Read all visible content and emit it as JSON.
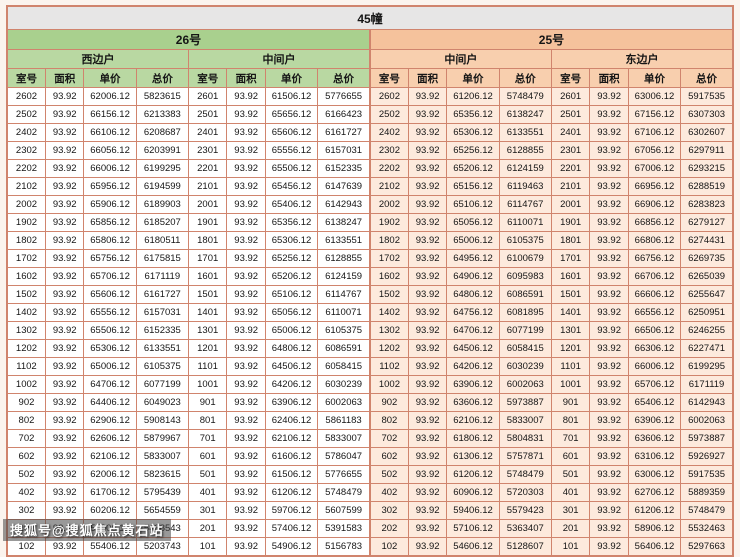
{
  "title": "45幢",
  "buildings": [
    {
      "label": "26号",
      "sections": [
        "西边户",
        "中间户"
      ]
    },
    {
      "label": "25号",
      "sections": [
        "中间户",
        "东边户"
      ]
    }
  ],
  "columns": [
    "室号",
    "面积",
    "单价",
    "总价"
  ],
  "rows": [
    [
      "2602",
      "93.92",
      "62006.12",
      "5823615",
      "2601",
      "93.92",
      "61506.12",
      "5776655",
      "2602",
      "93.92",
      "61206.12",
      "5748479",
      "2601",
      "93.92",
      "63006.12",
      "5917535"
    ],
    [
      "2502",
      "93.92",
      "66156.12",
      "6213383",
      "2501",
      "93.92",
      "65656.12",
      "6166423",
      "2502",
      "93.92",
      "65356.12",
      "6138247",
      "2501",
      "93.92",
      "67156.12",
      "6307303"
    ],
    [
      "2402",
      "93.92",
      "66106.12",
      "6208687",
      "2401",
      "93.92",
      "65606.12",
      "6161727",
      "2402",
      "93.92",
      "65306.12",
      "6133551",
      "2401",
      "93.92",
      "67106.12",
      "6302607"
    ],
    [
      "2302",
      "93.92",
      "66056.12",
      "6203991",
      "2301",
      "93.92",
      "65556.12",
      "6157031",
      "2302",
      "93.92",
      "65256.12",
      "6128855",
      "2301",
      "93.92",
      "67056.12",
      "6297911"
    ],
    [
      "2202",
      "93.92",
      "66006.12",
      "6199295",
      "2201",
      "93.92",
      "65506.12",
      "6152335",
      "2202",
      "93.92",
      "65206.12",
      "6124159",
      "2201",
      "93.92",
      "67006.12",
      "6293215"
    ],
    [
      "2102",
      "93.92",
      "65956.12",
      "6194599",
      "2101",
      "93.92",
      "65456.12",
      "6147639",
      "2102",
      "93.92",
      "65156.12",
      "6119463",
      "2101",
      "93.92",
      "66956.12",
      "6288519"
    ],
    [
      "2002",
      "93.92",
      "65906.12",
      "6189903",
      "2001",
      "93.92",
      "65406.12",
      "6142943",
      "2002",
      "93.92",
      "65106.12",
      "6114767",
      "2001",
      "93.92",
      "66906.12",
      "6283823"
    ],
    [
      "1902",
      "93.92",
      "65856.12",
      "6185207",
      "1901",
      "93.92",
      "65356.12",
      "6138247",
      "1902",
      "93.92",
      "65056.12",
      "6110071",
      "1901",
      "93.92",
      "66856.12",
      "6279127"
    ],
    [
      "1802",
      "93.92",
      "65806.12",
      "6180511",
      "1801",
      "93.92",
      "65306.12",
      "6133551",
      "1802",
      "93.92",
      "65006.12",
      "6105375",
      "1801",
      "93.92",
      "66806.12",
      "6274431"
    ],
    [
      "1702",
      "93.92",
      "65756.12",
      "6175815",
      "1701",
      "93.92",
      "65256.12",
      "6128855",
      "1702",
      "93.92",
      "64956.12",
      "6100679",
      "1701",
      "93.92",
      "66756.12",
      "6269735"
    ],
    [
      "1602",
      "93.92",
      "65706.12",
      "6171119",
      "1601",
      "93.92",
      "65206.12",
      "6124159",
      "1602",
      "93.92",
      "64906.12",
      "6095983",
      "1601",
      "93.92",
      "66706.12",
      "6265039"
    ],
    [
      "1502",
      "93.92",
      "65606.12",
      "6161727",
      "1501",
      "93.92",
      "65106.12",
      "6114767",
      "1502",
      "93.92",
      "64806.12",
      "6086591",
      "1501",
      "93.92",
      "66606.12",
      "6255647"
    ],
    [
      "1402",
      "93.92",
      "65556.12",
      "6157031",
      "1401",
      "93.92",
      "65056.12",
      "6110071",
      "1402",
      "93.92",
      "64756.12",
      "6081895",
      "1401",
      "93.92",
      "66556.12",
      "6250951"
    ],
    [
      "1302",
      "93.92",
      "65506.12",
      "6152335",
      "1301",
      "93.92",
      "65006.12",
      "6105375",
      "1302",
      "93.92",
      "64706.12",
      "6077199",
      "1301",
      "93.92",
      "66506.12",
      "6246255"
    ],
    [
      "1202",
      "93.92",
      "65306.12",
      "6133551",
      "1201",
      "93.92",
      "64806.12",
      "6086591",
      "1202",
      "93.92",
      "64506.12",
      "6058415",
      "1201",
      "93.92",
      "66306.12",
      "6227471"
    ],
    [
      "1102",
      "93.92",
      "65006.12",
      "6105375",
      "1101",
      "93.92",
      "64506.12",
      "6058415",
      "1102",
      "93.92",
      "64206.12",
      "6030239",
      "1101",
      "93.92",
      "66006.12",
      "6199295"
    ],
    [
      "1002",
      "93.92",
      "64706.12",
      "6077199",
      "1001",
      "93.92",
      "64206.12",
      "6030239",
      "1002",
      "93.92",
      "63906.12",
      "6002063",
      "1001",
      "93.92",
      "65706.12",
      "6171119"
    ],
    [
      "902",
      "93.92",
      "64406.12",
      "6049023",
      "901",
      "93.92",
      "63906.12",
      "6002063",
      "902",
      "93.92",
      "63606.12",
      "5973887",
      "901",
      "93.92",
      "65406.12",
      "6142943"
    ],
    [
      "802",
      "93.92",
      "62906.12",
      "5908143",
      "801",
      "93.92",
      "62406.12",
      "5861183",
      "802",
      "93.92",
      "62106.12",
      "5833007",
      "801",
      "93.92",
      "63906.12",
      "6002063"
    ],
    [
      "702",
      "93.92",
      "62606.12",
      "5879967",
      "701",
      "93.92",
      "62106.12",
      "5833007",
      "702",
      "93.92",
      "61806.12",
      "5804831",
      "701",
      "93.92",
      "63606.12",
      "5973887"
    ],
    [
      "602",
      "93.92",
      "62106.12",
      "5833007",
      "601",
      "93.92",
      "61606.12",
      "5786047",
      "602",
      "93.92",
      "61306.12",
      "5757871",
      "601",
      "93.92",
      "63106.12",
      "5926927"
    ],
    [
      "502",
      "93.92",
      "62006.12",
      "5823615",
      "501",
      "93.92",
      "61506.12",
      "5776655",
      "502",
      "93.92",
      "61206.12",
      "5748479",
      "501",
      "93.92",
      "63006.12",
      "5917535"
    ],
    [
      "402",
      "93.92",
      "61706.12",
      "5795439",
      "401",
      "93.92",
      "61206.12",
      "5748479",
      "402",
      "93.92",
      "60906.12",
      "5720303",
      "401",
      "93.92",
      "62706.12",
      "5889359"
    ],
    [
      "302",
      "93.92",
      "60206.12",
      "5654559",
      "301",
      "93.92",
      "59706.12",
      "5607599",
      "302",
      "93.92",
      "59406.12",
      "5579423",
      "301",
      "93.92",
      "61206.12",
      "5748479"
    ],
    [
      "202",
      "93.92",
      "57906.12",
      "5438543",
      "201",
      "93.92",
      "57406.12",
      "5391583",
      "202",
      "93.92",
      "57106.12",
      "5363407",
      "201",
      "93.92",
      "58906.12",
      "5532463"
    ],
    [
      "102",
      "93.92",
      "55406.12",
      "5203743",
      "101",
      "93.92",
      "54906.12",
      "5156783",
      "102",
      "93.92",
      "54606.12",
      "5128607",
      "101",
      "93.92",
      "56406.12",
      "5297663"
    ]
  ],
  "watermark": "搜狐号@搜狐焦点黄石站",
  "colors": {
    "title_bg": "#e7e6e6",
    "green_header": "#a9d08e",
    "green_sub": "#b9d8a2",
    "peach_header": "#f5c29c",
    "peach_sub": "#f8cfae",
    "peach_data": "#fdeadd",
    "border": "#d0846d"
  }
}
